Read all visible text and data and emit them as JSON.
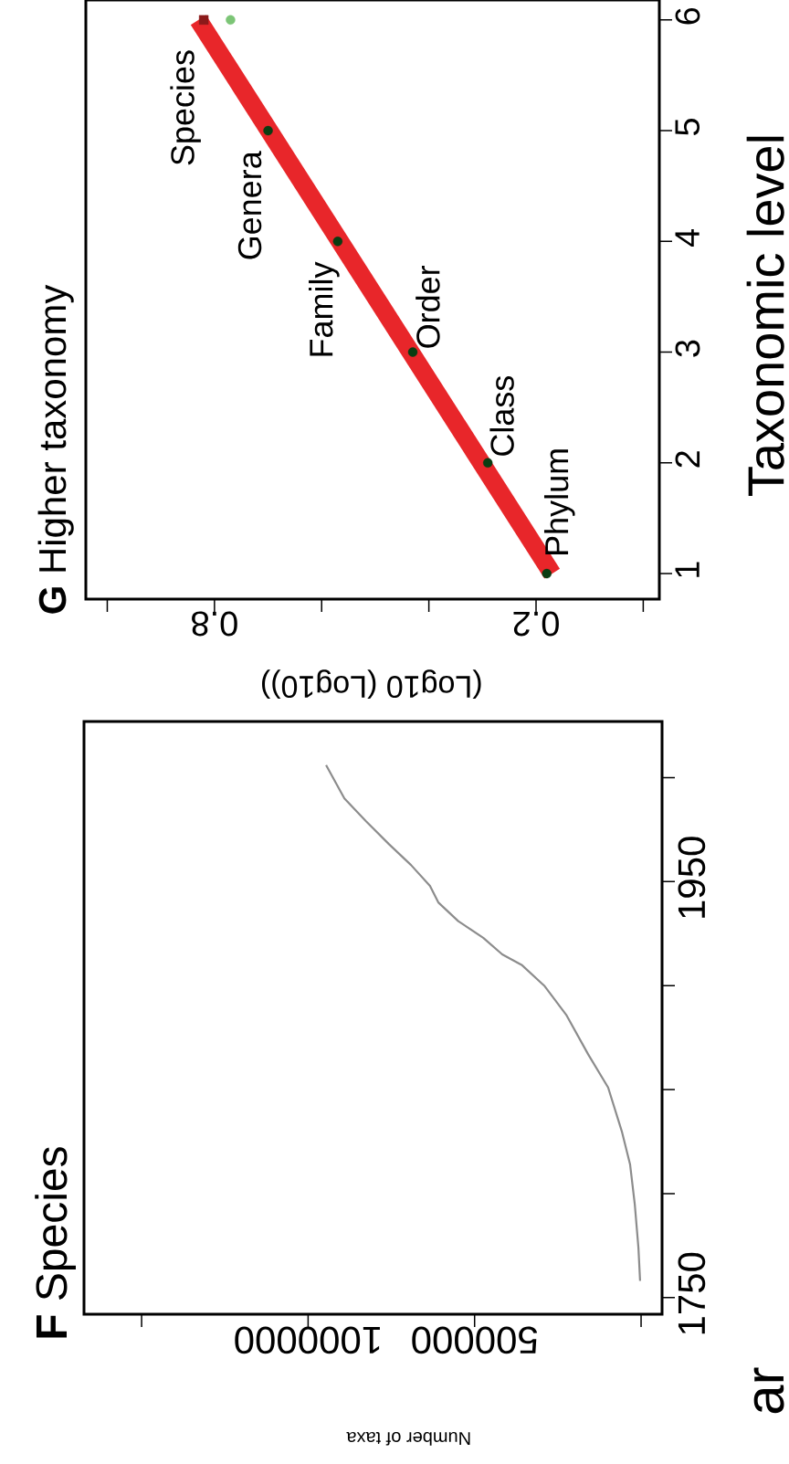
{
  "chart_data": [
    {
      "type": "line",
      "title": "**F** Species",
      "xlabel": "Number of taxa",
      "series": [
        {
          "color": "#8c8c8c",
          "x": [
            3000,
            8000,
            19000,
            33000,
            58000,
            99000,
            159000,
            225000,
            291000,
            359000,
            417000,
            474000,
            549000,
            609000,
            634000,
            691000,
            757000,
            826000,
            891000,
            946000
          ],
          "values": [
            1758,
            1774,
            1795,
            1814,
            1830,
            1851,
            1867,
            1886,
            1900,
            1910,
            1915,
            1923,
            1931,
            1940,
            1948,
            1958,
            1968,
            1979,
            1990,
            2006
          ]
        }
      ],
      "xlim": [
        1673000,
        -63000
      ],
      "xticks": [
        {
          "value": 1500000,
          "label": null
        },
        1000000,
        500000,
        {
          "value": 0,
          "label": null
        }
      ],
      "ylim": [
        1742,
        2027
      ],
      "yticks": [
        1750,
        {
          "value": 1800,
          "label": null
        },
        {
          "value": 1850,
          "label": null
        },
        {
          "value": 1900,
          "label": null
        },
        1950,
        {
          "value": 2000,
          "label": null
        }
      ],
      "annotations": [
        "ar"
      ]
    },
    {
      "type": "scatter",
      "title": "**G** Higher taxonomy",
      "xlabel": "(Log10 (Log10))",
      "ylabel": "Taxonomic level",
      "series": [
        {
          "type": "line",
          "x": [
            0.17,
            0.83
          ],
          "values": [
            1,
            6
          ],
          "color": "#e8262a"
        },
        {
          "x": [
            0.18,
            0.29,
            0.43,
            0.57,
            0.7
          ],
          "values": [
            1,
            2,
            3,
            4,
            5
          ],
          "color": "#0a3d12",
          "marker": "circle"
        },
        {
          "x": [
            0.82
          ],
          "values": [
            6
          ],
          "color": "#8b1a1a",
          "marker": "square"
        },
        {
          "x": [
            0.77
          ],
          "values": [
            6
          ],
          "color": "#7cc576",
          "marker": "circle"
        }
      ],
      "xlim": [
        1.04,
        -0.03
      ],
      "xticks": [
        {
          "value": 1.0,
          "label": null
        },
        0.8,
        {
          "value": 0.6,
          "label": null
        },
        {
          "value": 0.4,
          "label": null
        },
        0.2,
        {
          "value": 0,
          "label": null
        }
      ],
      "ylim": [
        0.77,
        6.18
      ],
      "yticks": [
        1,
        2,
        3,
        4,
        5,
        6
      ],
      "annotations": [
        {
          "text": "Phylum",
          "x": 0.18,
          "y": 1
        },
        {
          "text": "Class",
          "x": 0.29,
          "y": 2
        },
        {
          "text": "Order",
          "x": 0.43,
          "y": 3
        },
        {
          "text": "Family",
          "x": 0.57,
          "y": 4
        },
        {
          "text": "Genera",
          "x": 0.7,
          "y": 5
        },
        {
          "text": "Species",
          "x": 0.82,
          "y": 6
        }
      ]
    }
  ]
}
